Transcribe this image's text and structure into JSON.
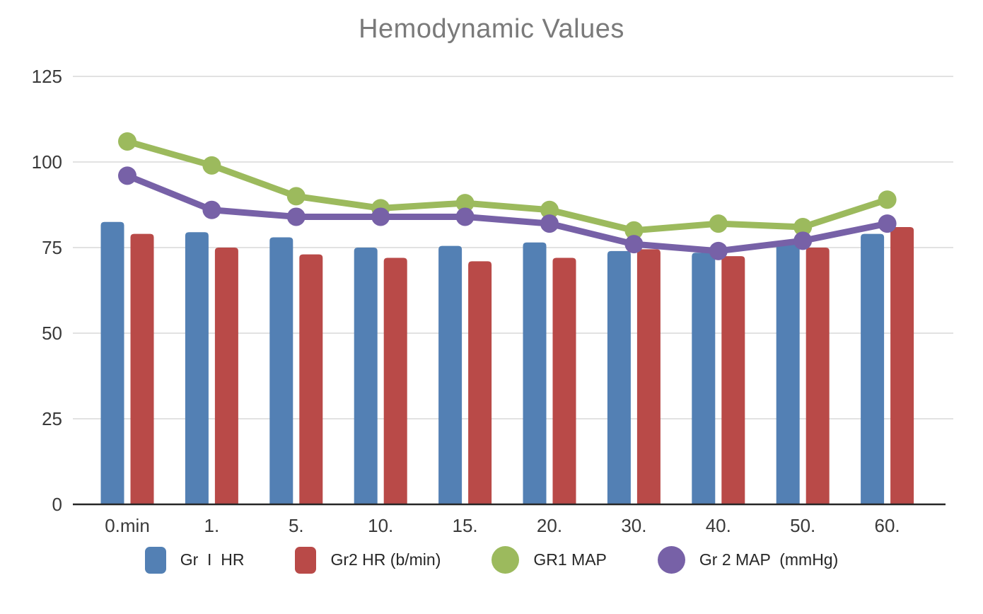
{
  "title": "Hemodynamic Values",
  "colors": {
    "blue": "#5380b4",
    "red": "#b94a48",
    "green": "#9cba5d",
    "purple": "#7761a7",
    "title_text": "#7a7a7a",
    "axis_text": "#3a3a3a",
    "gridline": "#d8d8d8",
    "baseline": "#262626",
    "legend_text": "#262626"
  },
  "chart_data": {
    "type": "bar",
    "subtype": "grouped bars with overlaid line series",
    "title": "Hemodynamic Values",
    "xlabel": "",
    "ylabel": "",
    "categories": [
      "0.min",
      "1.",
      "5.",
      "10.",
      "15.",
      "20.",
      "30.",
      "40.",
      "50.",
      "60."
    ],
    "series": [
      {
        "name": "Gr  I  HR",
        "type": "bar",
        "marker": "square",
        "color_key": "blue",
        "values": [
          82.5,
          79.5,
          78,
          75,
          75.5,
          76.5,
          74,
          73.5,
          77,
          79
        ]
      },
      {
        "name": "Gr2 HR (b/min)",
        "type": "bar",
        "marker": "square",
        "color_key": "red",
        "values": [
          79,
          75,
          73,
          72,
          71,
          72,
          74.5,
          72.5,
          75,
          81
        ]
      },
      {
        "name": "GR1 MAP",
        "type": "line",
        "marker": "circle",
        "color_key": "green",
        "values": [
          106,
          99,
          90,
          86.5,
          88,
          86,
          80,
          82,
          81,
          89
        ]
      },
      {
        "name": "Gr 2 MAP  (mmHg)",
        "type": "line",
        "marker": "circle",
        "color_key": "purple",
        "values": [
          96,
          86,
          84,
          84,
          84,
          82,
          76,
          74,
          77,
          82
        ]
      }
    ],
    "ylim": [
      0,
      125
    ],
    "yticks": [
      0,
      25,
      50,
      75,
      100,
      125
    ],
    "grid": true,
    "legend_position": "bottom"
  }
}
